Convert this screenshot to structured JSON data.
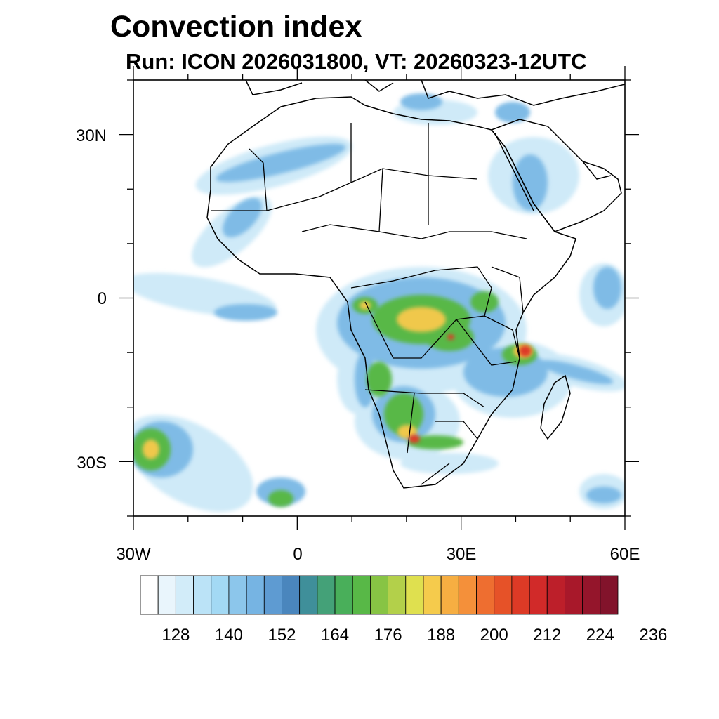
{
  "title": "Convection index",
  "subtitle": "Run: ICON 2026031800,  VT: 20260323-12UTC",
  "axes": {
    "lon_labels": [
      "30W",
      "0",
      "30E",
      "60E"
    ],
    "lat_labels": [
      "30N",
      "0",
      "30S"
    ],
    "lon_range_deg": [
      -30,
      60
    ],
    "lat_range_deg": [
      -40,
      40
    ]
  },
  "colorbar": {
    "tick_labels": [
      "128",
      "140",
      "152",
      "164",
      "176",
      "188",
      "200",
      "212",
      "224",
      "236"
    ],
    "colors": [
      "#ffffff",
      "#e9f5fc",
      "#d2ecf9",
      "#bbe3f7",
      "#a3d9f4",
      "#8cc6eb",
      "#76b4e3",
      "#5e9bd2",
      "#4a86bd",
      "#3f8f9a",
      "#44a178",
      "#49af5a",
      "#58b847",
      "#87c444",
      "#b3d04a",
      "#dfe04f",
      "#f5cb4c",
      "#f6ae42",
      "#f4903a",
      "#ee6e30",
      "#e65228",
      "#dd3a26",
      "#d12a29",
      "#bd1f2a",
      "#a8182a",
      "#94152b",
      "#82132b"
    ]
  },
  "map": {
    "ocean_color": "#ffffff",
    "coast_color": "#000000",
    "border_color": "#000000"
  }
}
